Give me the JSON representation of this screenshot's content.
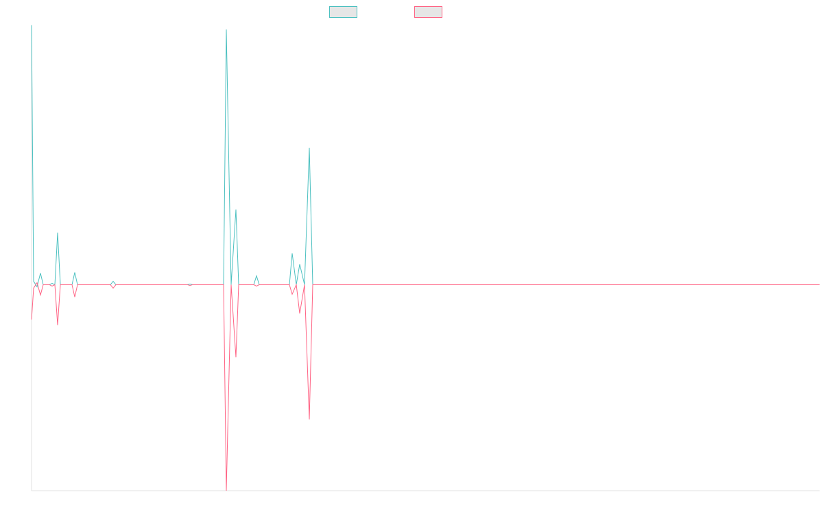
{
  "chart_data": {
    "type": "line",
    "x": [
      0,
      3,
      8,
      13,
      17,
      26,
      30,
      34,
      38,
      42,
      59,
      63,
      67,
      115,
      119,
      123,
      227,
      231,
      235,
      280,
      284,
      291,
      298,
      302,
      324,
      328,
      332,
      376,
      380,
      386,
      391,
      398,
      405,
      410,
      1149
    ],
    "series": [
      {
        "color": "#4bc0c0",
        "values": [
          379,
          5,
          -3,
          17,
          0,
          0,
          2,
          0,
          76,
          0,
          0,
          18,
          0,
          0,
          5,
          0,
          0,
          1,
          0,
          0,
          373,
          0,
          110,
          0,
          0,
          13,
          0,
          0,
          46,
          0,
          30,
          0,
          200,
          0,
          0
        ]
      },
      {
        "color": "#ff6384",
        "values": [
          -51,
          -5,
          3,
          -15,
          0,
          0,
          -2,
          0,
          -59,
          0,
          0,
          -18,
          0,
          0,
          -5,
          0,
          0,
          -1,
          0,
          0,
          -301,
          0,
          -106,
          0,
          0,
          -2,
          0,
          0,
          -14,
          0,
          -42,
          0,
          -197,
          0,
          0
        ]
      }
    ],
    "xlim": [
      0,
      1149
    ],
    "ylim": [
      -301,
      380
    ]
  }
}
